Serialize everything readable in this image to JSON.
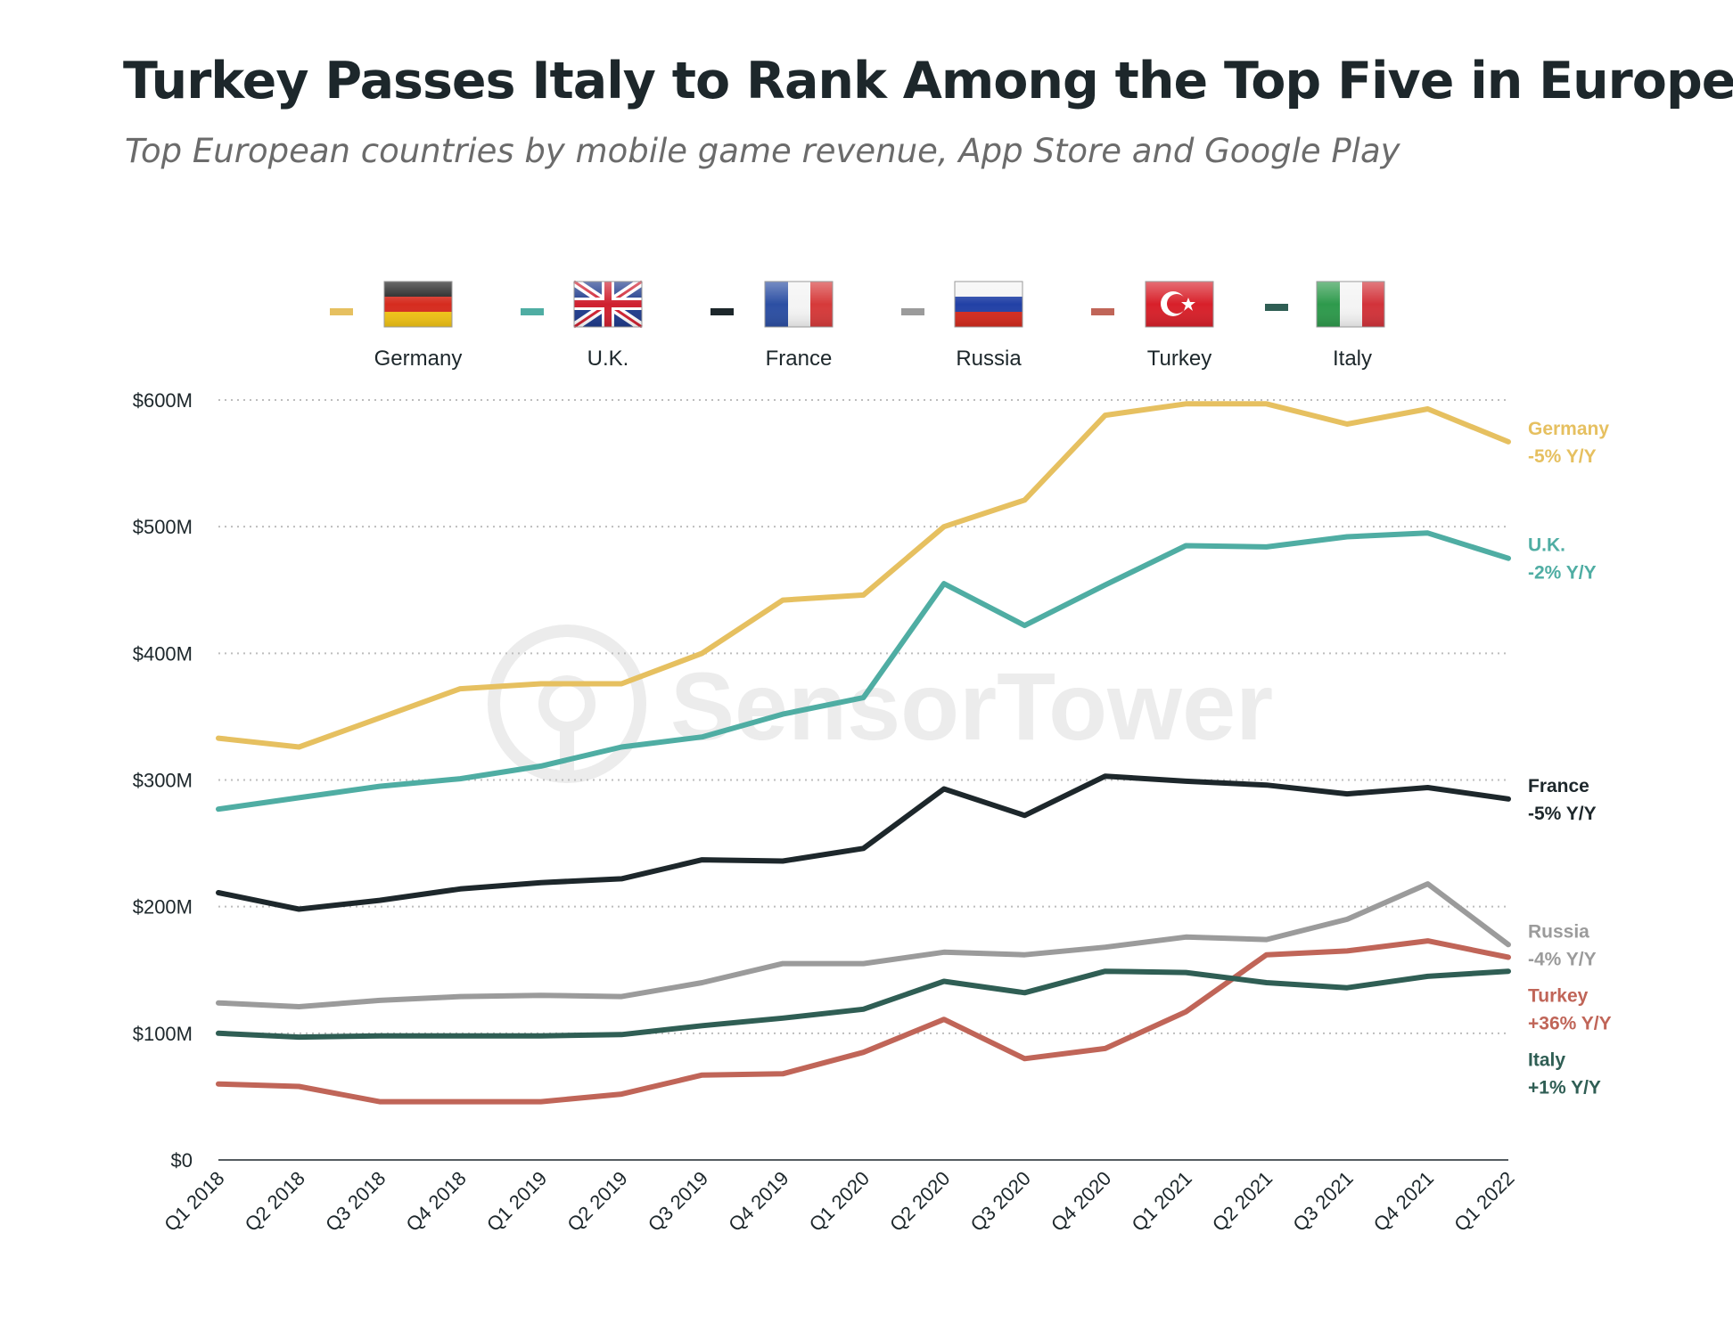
{
  "chart_data": {
    "type": "line",
    "title": "Turkey Passes Italy to Rank Among the Top Five in Europe",
    "subtitle": "Top European countries by mobile game revenue, App Store and Google Play",
    "categories": [
      "Q1 2018",
      "Q2 2018",
      "Q3 2018",
      "Q4 2018",
      "Q1 2019",
      "Q2 2019",
      "Q3 2019",
      "Q4 2019",
      "Q1 2020",
      "Q2 2020",
      "Q3 2020",
      "Q4 2020",
      "Q1 2021",
      "Q2 2021",
      "Q3 2021",
      "Q4 2021",
      "Q1 2022"
    ],
    "ylim": [
      0,
      600
    ],
    "yticks": [
      {
        "value": 0,
        "label": "$0"
      },
      {
        "value": 100,
        "label": "$100M"
      },
      {
        "value": 200,
        "label": "$200M"
      },
      {
        "value": 300,
        "label": "$300M"
      },
      {
        "value": 400,
        "label": "$400M"
      },
      {
        "value": 500,
        "label": "$500M"
      },
      {
        "value": 600,
        "label": "$600M"
      }
    ],
    "xlabel": "",
    "ylabel": "",
    "grid": true,
    "legend_position": "top",
    "watermark": "SensorTower",
    "series": [
      {
        "name": "Germany",
        "key": "germany",
        "color": "#e6c060",
        "end_label": "Germany",
        "change": "-5% Y/Y",
        "values": [
          333,
          326,
          349,
          372,
          376,
          376,
          400,
          442,
          446,
          500,
          521,
          588,
          597,
          597,
          581,
          593,
          567
        ]
      },
      {
        "name": "U.K.",
        "key": "uk",
        "color": "#4fada3",
        "end_label": "U.K.",
        "change": "-2% Y/Y",
        "values": [
          277,
          286,
          295,
          301,
          311,
          326,
          334,
          352,
          365,
          455,
          422,
          454,
          485,
          484,
          492,
          495,
          475
        ]
      },
      {
        "name": "France",
        "key": "france",
        "color": "#1d272b",
        "end_label": "France",
        "change": "-5% Y/Y",
        "values": [
          211,
          198,
          205,
          214,
          219,
          222,
          237,
          236,
          246,
          293,
          272,
          303,
          299,
          296,
          289,
          294,
          285
        ]
      },
      {
        "name": "Russia",
        "key": "russia",
        "color": "#9b9b9b",
        "end_label": "Russia",
        "change": "-4% Y/Y",
        "values": [
          124,
          121,
          126,
          129,
          130,
          129,
          140,
          155,
          155,
          164,
          162,
          168,
          176,
          174,
          190,
          218,
          170
        ]
      },
      {
        "name": "Turkey",
        "key": "turkey",
        "color": "#c06558",
        "end_label": "Turkey",
        "change": "+36% Y/Y",
        "values": [
          60,
          58,
          46,
          46,
          46,
          52,
          67,
          68,
          85,
          111,
          80,
          88,
          117,
          162,
          165,
          173,
          160
        ]
      },
      {
        "name": "Italy",
        "key": "italy",
        "color": "#2f5e54",
        "end_label": "Italy",
        "change": "+1% Y/Y",
        "values": [
          100,
          97,
          98,
          98,
          98,
          99,
          106,
          112,
          119,
          141,
          132,
          149,
          148,
          140,
          136,
          145,
          149
        ]
      }
    ]
  }
}
